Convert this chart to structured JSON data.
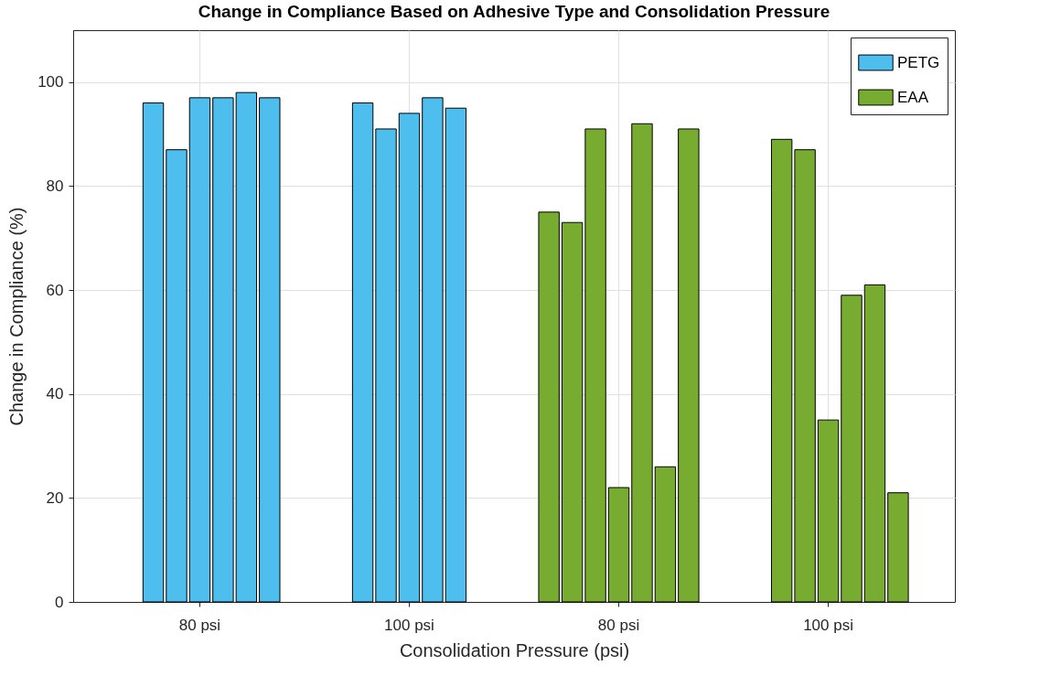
{
  "chart_data": {
    "type": "bar",
    "title": "Change in Compliance Based on Adhesive Type and Consolidation Pressure",
    "xlabel": "Consolidation Pressure (psi)",
    "ylabel": "Change in Compliance (%)",
    "categories": [
      null,
      null,
      null,
      null,
      "80 psi",
      null,
      null,
      null,
      null,
      null,
      null,
      null,
      null,
      "100 psi",
      null,
      null,
      null,
      null,
      null,
      null,
      null,
      null,
      "80 psi",
      null,
      null,
      null,
      null,
      null,
      null,
      null,
      null,
      "100 psi",
      null,
      null,
      null,
      null
    ],
    "series": [
      {
        "name": "PETG",
        "color": "#4dbeee",
        "values": [
          null,
          null,
          96,
          87,
          97,
          97,
          98,
          97,
          null,
          null,
          null,
          96,
          91,
          94,
          97,
          95,
          null,
          null,
          null,
          null,
          null,
          null,
          null,
          null,
          null,
          null,
          null,
          null,
          null,
          null,
          null,
          null,
          null,
          null,
          null,
          null
        ]
      },
      {
        "name": "EAA",
        "color": "#77ac30",
        "values": [
          null,
          null,
          null,
          null,
          null,
          null,
          null,
          null,
          null,
          null,
          null,
          null,
          null,
          null,
          null,
          null,
          null,
          null,
          null,
          75,
          73,
          91,
          22,
          92,
          26,
          91,
          null,
          null,
          null,
          89,
          87,
          35,
          59,
          61,
          21,
          null
        ]
      }
    ],
    "ylim": [
      0,
      110
    ],
    "yticks": [
      0,
      20,
      40,
      60,
      80,
      100
    ],
    "grid": true,
    "legend": "top right"
  }
}
